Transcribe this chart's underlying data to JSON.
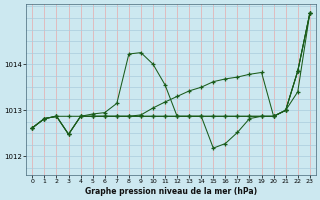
{
  "title": "Graphe pression niveau de la mer (hPa)",
  "background_color": "#cce8f0",
  "grid_color_h": "#aaccdd",
  "grid_color_v": "#e8aaaa",
  "line_color": "#1a5c1a",
  "xlim": [
    -0.5,
    23.5
  ],
  "ylim": [
    1011.6,
    1015.3
  ],
  "yticks": [
    1012,
    1013,
    1014
  ],
  "xticks": [
    0,
    1,
    2,
    3,
    4,
    5,
    6,
    7,
    8,
    9,
    10,
    11,
    12,
    13,
    14,
    15,
    16,
    17,
    18,
    19,
    20,
    21,
    22,
    23
  ],
  "s1": [
    1012.62,
    1012.82,
    1012.87,
    1012.48,
    1012.87,
    1012.92,
    1012.95,
    1013.15,
    1014.22,
    1014.25,
    1014.0,
    1013.55,
    1012.87,
    1012.87,
    1012.87,
    1012.18,
    1012.28,
    1012.52,
    1012.82,
    1012.87,
    1012.87,
    1013.0,
    1013.85,
    1015.1
  ],
  "s2": [
    1012.62,
    1012.82,
    1012.87,
    1012.48,
    1012.87,
    1012.87,
    1012.87,
    1012.87,
    1012.87,
    1012.9,
    1013.05,
    1013.18,
    1013.3,
    1013.42,
    1013.5,
    1013.62,
    1013.68,
    1013.72,
    1013.78,
    1013.82,
    1012.87,
    1013.0,
    1013.85,
    1015.1
  ],
  "s3": [
    1012.62,
    1012.82,
    1012.87,
    1012.87,
    1012.87,
    1012.87,
    1012.87,
    1012.87,
    1012.87,
    1012.87,
    1012.87,
    1012.87,
    1012.87,
    1012.87,
    1012.87,
    1012.87,
    1012.87,
    1012.87,
    1012.87,
    1012.87,
    1012.87,
    1013.0,
    1013.85,
    1015.1
  ],
  "s4": [
    1012.62,
    1012.82,
    1012.87,
    1012.48,
    1012.87,
    1012.87,
    1012.87,
    1012.87,
    1012.87,
    1012.87,
    1012.87,
    1012.87,
    1012.87,
    1012.87,
    1012.87,
    1012.87,
    1012.87,
    1012.87,
    1012.87,
    1012.87,
    1012.87,
    1013.0,
    1013.4,
    1015.1
  ]
}
